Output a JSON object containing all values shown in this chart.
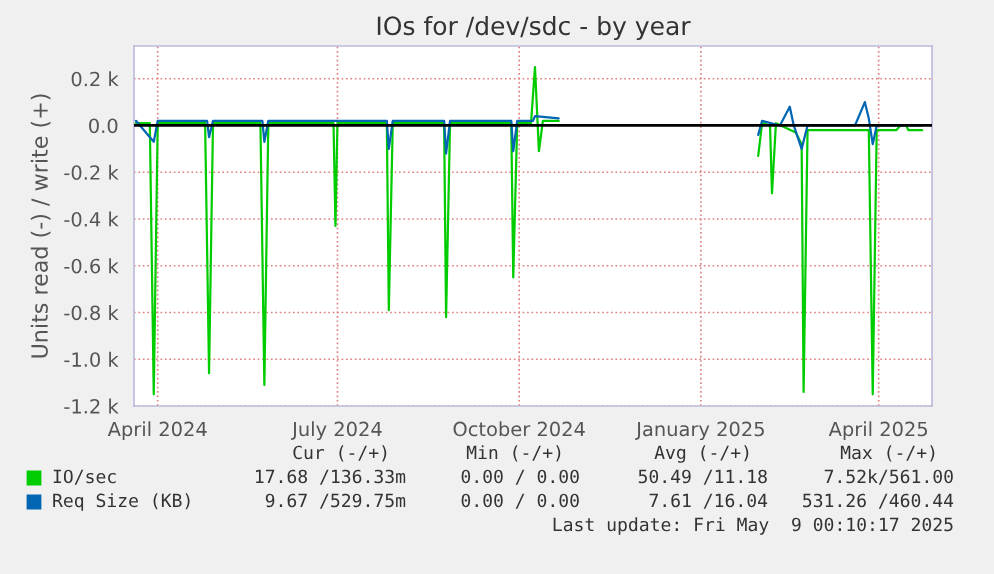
{
  "chart_data": {
    "type": "line",
    "title": "IOs for /dev/sdc - by year",
    "ylabel": "Units read (-) / write (+)",
    "xlim": [
      "2024-03-20",
      "2025-04-28"
    ],
    "xticks": [
      {
        "value": "2024-04-01",
        "label": "April 2024"
      },
      {
        "value": "2024-07-01",
        "label": "July 2024"
      },
      {
        "value": "2024-10-01",
        "label": "October 2024"
      },
      {
        "value": "2025-01-01",
        "label": "January 2025"
      },
      {
        "value": "2025-04-01",
        "label": "April 2025"
      }
    ],
    "ylim": [
      -1200,
      340
    ],
    "yticks": [
      {
        "value": -1200,
        "label": "-1.2 k"
      },
      {
        "value": -1000,
        "label": "-1.0 k"
      },
      {
        "value": -800,
        "label": "-0.8 k"
      },
      {
        "value": -600,
        "label": "-0.6 k"
      },
      {
        "value": -400,
        "label": "-0.4 k"
      },
      {
        "value": -200,
        "label": "-0.2 k"
      },
      {
        "value": 0,
        "label": "0.0"
      },
      {
        "value": 200,
        "label": "0.2 k"
      }
    ],
    "grid": true,
    "legend": "bottom",
    "ref_lines": [
      {
        "axis": "y",
        "value": 0,
        "color": "#000000"
      }
    ],
    "series": [
      {
        "name": "IO/sec",
        "color": "#00cc00",
        "x": [
          "2024-03-21",
          "2024-03-28",
          "2024-03-30",
          "2024-04-01",
          "2024-04-25",
          "2024-04-27",
          "2024-04-29",
          "2024-05-23",
          "2024-05-25",
          "2024-05-27",
          "2024-06-29",
          "2024-06-30",
          "2024-07-01",
          "2024-07-26",
          "2024-07-27",
          "2024-07-29",
          "2024-08-24",
          "2024-08-25",
          "2024-08-27",
          "2024-09-27",
          "2024-09-28",
          "2024-09-30",
          "2024-10-07",
          "2024-10-09",
          "2024-10-11",
          "2024-10-13",
          "2024-10-21",
          "2024-11-15",
          "2025-01-30",
          "2025-02-01",
          "2025-02-05",
          "2025-02-06",
          "2025-02-08",
          "2025-02-18",
          "2025-02-21",
          "2025-02-22",
          "2025-02-24",
          "2025-03-27",
          "2025-03-29",
          "2025-03-31",
          "2025-04-10",
          "2025-04-12",
          "2025-04-15",
          "2025-04-16",
          "2025-04-23"
        ],
        "values": [
          10,
          10,
          -1150,
          10,
          10,
          -1060,
          10,
          10,
          -1110,
          10,
          10,
          -430,
          10,
          10,
          -790,
          10,
          10,
          -820,
          10,
          10,
          -650,
          10,
          10,
          250,
          -110,
          20,
          20,
          null,
          -130,
          10,
          0,
          -290,
          10,
          -30,
          -80,
          -1140,
          -20,
          -20,
          -1150,
          -20,
          -20,
          0,
          0,
          -20,
          -20
        ]
      },
      {
        "name": "Req Size (KB)",
        "color": "#0066b3",
        "x": [
          "2024-03-21",
          "2024-03-29",
          "2024-03-30",
          "2024-04-01",
          "2024-04-26",
          "2024-04-27",
          "2024-04-29",
          "2024-05-24",
          "2024-05-25",
          "2024-05-27",
          "2024-07-26",
          "2024-07-27",
          "2024-07-29",
          "2024-08-24",
          "2024-08-25",
          "2024-08-27",
          "2024-09-27",
          "2024-09-28",
          "2024-09-30",
          "2024-10-08",
          "2024-10-09",
          "2024-10-21",
          "2024-11-15",
          "2025-01-30",
          "2025-02-01",
          "2025-02-10",
          "2025-02-15",
          "2025-02-17",
          "2025-02-21",
          "2025-02-24",
          "2025-03-20",
          "2025-03-25",
          "2025-03-27",
          "2025-03-29",
          "2025-03-31",
          "2025-04-23"
        ],
        "values": [
          20,
          -60,
          -70,
          20,
          20,
          -50,
          20,
          20,
          -70,
          20,
          20,
          -100,
          20,
          20,
          -120,
          20,
          20,
          -110,
          20,
          20,
          40,
          30,
          null,
          -40,
          20,
          0,
          80,
          0,
          -100,
          0,
          0,
          100,
          30,
          -80,
          0,
          0
        ]
      }
    ],
    "annotations": [
      "Cur (-/+)",
      "Min (-/+)",
      "Avg (-/+)",
      "Max (-/+)",
      "17.68 /136.33m",
      "0.00 / 0.00",
      "50.49 /11.18",
      "7.52k/561.00",
      "9.67 /529.75m",
      "0.00 / 0.00",
      "7.61 /16.04",
      "531.26 /460.44",
      "Last update: Fri May  9 00:10:17 2025"
    ]
  }
}
